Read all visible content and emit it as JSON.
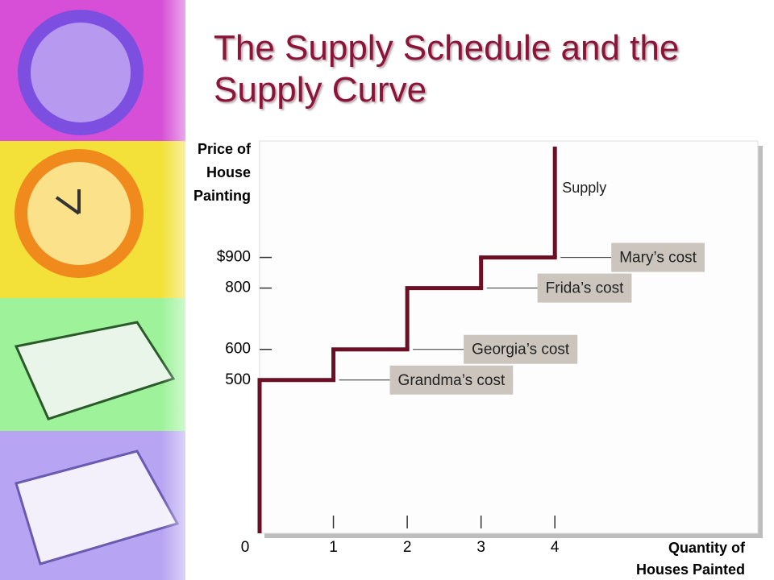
{
  "chart_data": {
    "type": "step",
    "title": "The Supply Schedule and the Supply Curve",
    "ylabel": [
      "Price of",
      "House",
      "Painting"
    ],
    "xlabel": [
      "Quantity of",
      "Houses Painted"
    ],
    "series": [
      {
        "name": "Supply",
        "color": "#6b0f24",
        "x": [
          1,
          2,
          3,
          4
        ],
        "values": [
          500,
          600,
          800,
          900
        ],
        "point_labels": [
          "Grandma’s cost",
          "Georgia’s cost",
          "Frida’s cost",
          "Mary’s cost"
        ]
      }
    ],
    "xlim": [
      0,
      6.75
    ],
    "xticks": [
      0,
      1,
      2,
      3,
      4
    ],
    "ylim": [
      0,
      1280
    ],
    "yticks": [
      500,
      600,
      800,
      {
        "value": 900,
        "label": "$900"
      }
    ],
    "label_color": "#cbc5bd"
  }
}
